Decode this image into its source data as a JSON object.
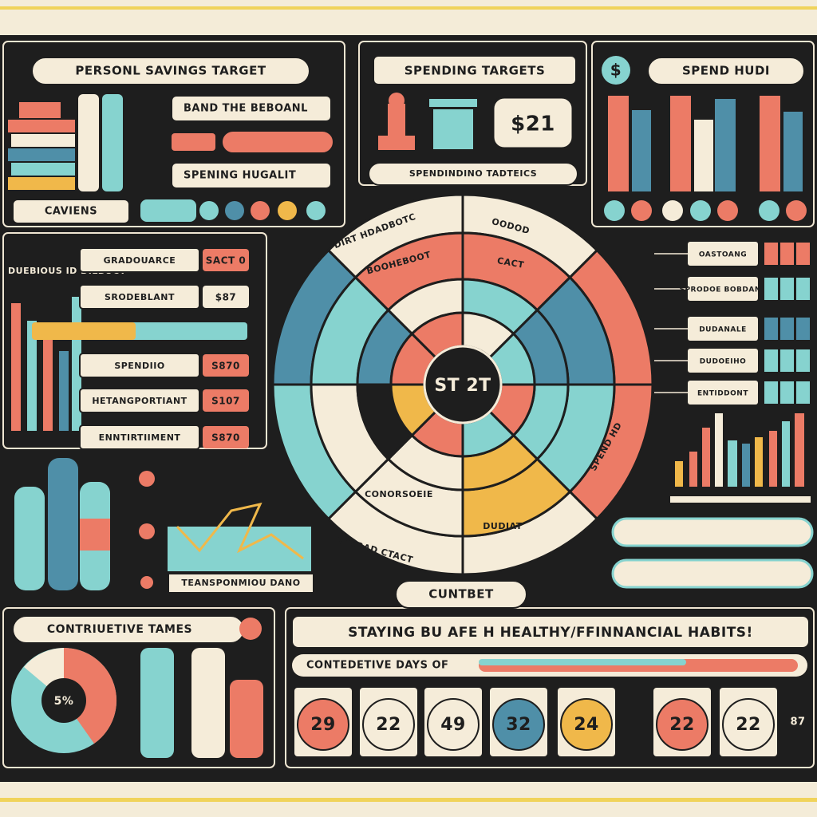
{
  "savings_panel": {
    "title": "PERSONL SAVINGS TARGET",
    "items": [
      "BAND THE BEBOANL",
      "SPENING HUGALIT"
    ],
    "label": "CAVIENS"
  },
  "spending_panel": {
    "title": "SPENDING TARGETS",
    "price": "$21",
    "caption": "SPENDINDINO TADTEICS"
  },
  "spend_panel": {
    "title": "SPEND HUDI",
    "icon": "$"
  },
  "left_list": {
    "heading": "DUEBIOUS ID DILBUCY",
    "rows": [
      {
        "label": "GRADOUARCE",
        "value": "SACT 0"
      },
      {
        "label": "SRODEBLANT",
        "value": "$87"
      },
      {
        "label": "SPENDIIO",
        "value": "S870"
      },
      {
        "label": "HETANGPORTIANT",
        "value": "S107"
      },
      {
        "label": "ENNTIRTIIMENT",
        "value": "S870"
      }
    ]
  },
  "right_list": {
    "rows": [
      "OASTOANG",
      "SPRODOE BOBDANE",
      "DUDANALE",
      "DUDOEIHO",
      "ENTIDDONT"
    ]
  },
  "trend": {
    "caption": "TEANSPONMIOU DANO"
  },
  "center": {
    "label": "ST 2T",
    "caption": "CUNTBET",
    "ring_labels": [
      "DIRT HDADBOTC",
      "BOOHEBOOT",
      "OODOD",
      "CACT",
      "CONORSOEIE",
      "DUDIAT",
      "EYSRAD CTACT",
      "SPEND HD"
    ]
  },
  "contrib_panel": {
    "title": "CONTRIUETIVE TAMES",
    "pie_label": "5%"
  },
  "habits": {
    "title": "STAYING BU AFE H HEALTHY/FFINNANCIAL HABITS!",
    "progress_label": "CONTEDETIVE DAYS OF",
    "days": [
      "29",
      "22",
      "49",
      "32",
      "24",
      "22",
      "22"
    ],
    "extra": "87"
  }
}
